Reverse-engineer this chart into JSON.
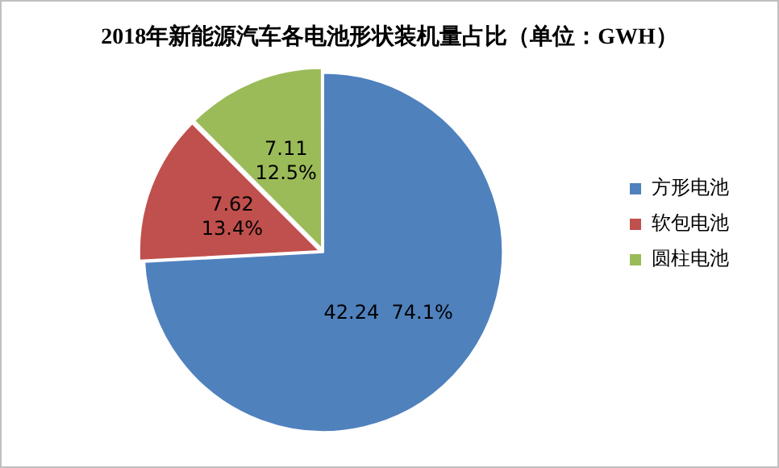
{
  "chart_data": {
    "type": "pie",
    "title": "2018年新能源汽车各电池形状装机量占比（单位：GWH）",
    "categories": [
      "方形电池",
      "软包电池",
      "圆柱电池"
    ],
    "values": [
      42.24,
      7.62,
      7.11
    ],
    "colors": [
      "#4f81bd",
      "#c0504d",
      "#9bbb59"
    ],
    "value_labels": [
      "42.24  74.1%",
      "7.62  13.4%",
      "7.11  12.5%"
    ],
    "legend": "right"
  }
}
